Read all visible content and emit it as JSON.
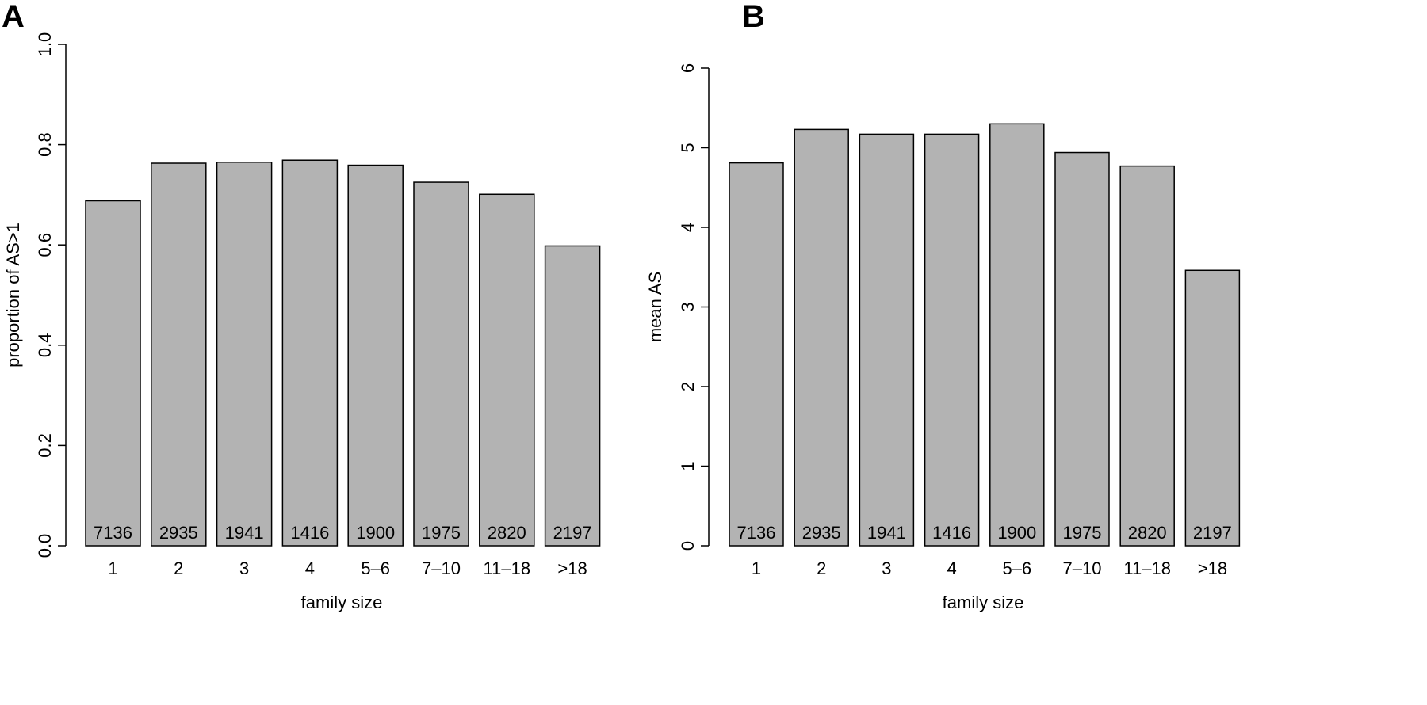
{
  "chart_data": [
    {
      "panel": "A",
      "type": "bar",
      "categories": [
        "1",
        "2",
        "3",
        "4",
        "5–6",
        "7–10",
        "11–18",
        ">18"
      ],
      "values": [
        0.688,
        0.763,
        0.765,
        0.769,
        0.759,
        0.725,
        0.701,
        0.598
      ],
      "bar_labels": [
        "7136",
        "2935",
        "1941",
        "1416",
        "1900",
        "1975",
        "2820",
        "2197"
      ],
      "xlabel": "family size",
      "ylabel": "proportion of AS>1",
      "ylim": [
        0,
        1.0
      ],
      "yticks": [
        "0.0",
        "0.2",
        "0.4",
        "0.6",
        "0.8",
        "1.0"
      ],
      "bar_color": "#b3b3b3",
      "grid": false
    },
    {
      "panel": "B",
      "type": "bar",
      "categories": [
        "1",
        "2",
        "3",
        "4",
        "5–6",
        "7–10",
        "11–18",
        ">18"
      ],
      "values": [
        4.81,
        5.23,
        5.17,
        5.17,
        5.3,
        4.94,
        4.77,
        3.46
      ],
      "bar_labels": [
        "7136",
        "2935",
        "1941",
        "1416",
        "1900",
        "1975",
        "2820",
        "2197"
      ],
      "xlabel": "family size",
      "ylabel": "mean AS",
      "ylim": [
        0,
        6
      ],
      "yticks": [
        "0",
        "1",
        "2",
        "3",
        "4",
        "5",
        "6"
      ],
      "bar_color": "#b3b3b3",
      "grid": false
    }
  ]
}
